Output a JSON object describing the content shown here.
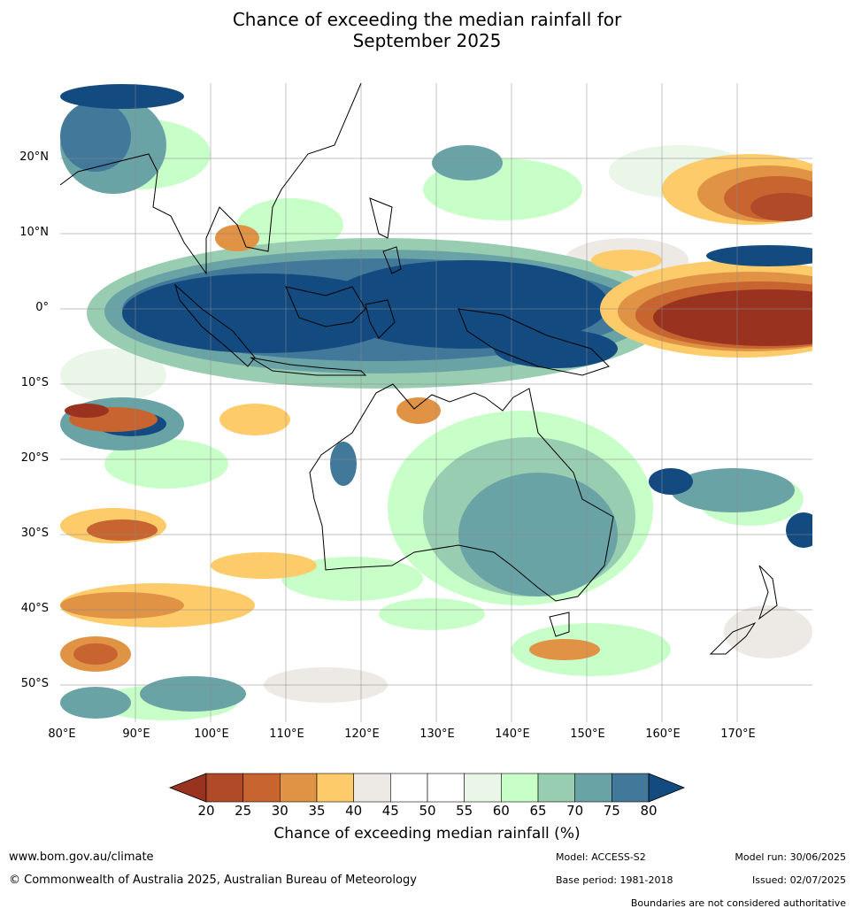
{
  "title": {
    "line1": "Chance of exceeding the median rainfall for",
    "line2": "September 2025"
  },
  "map": {
    "lat_labels": [
      "20°N",
      "10°N",
      "0°",
      "10°S",
      "20°S",
      "30°S",
      "40°S",
      "50°S"
    ],
    "lon_labels": [
      "80°E",
      "90°E",
      "100°E",
      "110°E",
      "120°E",
      "130°E",
      "140°E",
      "150°E",
      "160°E",
      "170°E"
    ],
    "lon_range": [
      80,
      180
    ],
    "lat_range": [
      -55,
      30
    ]
  },
  "colorbar": {
    "ticks": [
      "20",
      "25",
      "30",
      "35",
      "40",
      "45",
      "50",
      "55",
      "60",
      "65",
      "70",
      "75",
      "80"
    ],
    "colors": [
      "#993320",
      "#b04a28",
      "#c8642f",
      "#e09345",
      "#fecb6a",
      "#ede9e4",
      "#ffffff",
      "#ffffff",
      "#e9f6e8",
      "#c8ffc8",
      "#98cdb2",
      "#6aa3a6",
      "#42789a",
      "#134b80"
    ],
    "label": "Chance of exceeding median rainfall (%)"
  },
  "footer": {
    "url": "www.bom.gov.au/climate",
    "copyright": "© Commonwealth of Australia 2025, Australian Bureau of Meteorology",
    "model": "Model: ACCESS-S2",
    "base_period": "Base period: 1981-2018",
    "model_run": "Model run: 30/06/2025",
    "issued": "Issued: 02/07/2025",
    "disclaimer": "Boundaries are not considered authoritative"
  }
}
